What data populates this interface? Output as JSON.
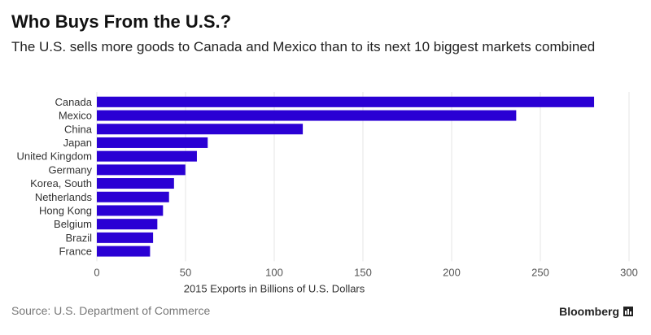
{
  "header": {
    "title": "Who Buys From the U.S.?",
    "subtitle": "The U.S. sells more goods to Canada and Mexico than to its next 10 biggest markets combined"
  },
  "footer": {
    "source": "Source: U.S. Department of Commerce",
    "brand": "Bloomberg"
  },
  "colors": {
    "bar": "#2a00d4",
    "grid": "#e6e6e6"
  },
  "chart_data": {
    "type": "bar",
    "orientation": "horizontal",
    "categories": [
      "Canada",
      "Mexico",
      "China",
      "Japan",
      "United Kingdom",
      "Germany",
      "Korea, South",
      "Netherlands",
      "Hong Kong",
      "Belgium",
      "Brazil",
      "France"
    ],
    "values": [
      280.3,
      236.4,
      116.1,
      62.5,
      56.4,
      49.9,
      43.5,
      40.7,
      37.3,
      34.1,
      31.7,
      30.0
    ],
    "xlabel": "2015 Exports in Billions of U.S. Dollars",
    "ylabel": "",
    "xlim": [
      0,
      300
    ],
    "xticks": [
      0,
      50,
      100,
      150,
      200,
      250,
      300
    ],
    "grid": true
  }
}
